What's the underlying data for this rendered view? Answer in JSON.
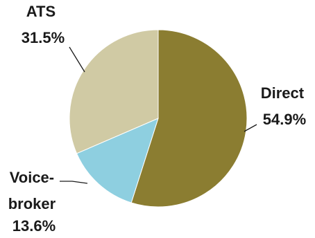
{
  "chart_data": {
    "type": "pie",
    "title": "",
    "slices": [
      {
        "name": "Direct",
        "label_lines": [
          "Direct",
          "54.9%"
        ],
        "value": 54.9,
        "color": "#8B7D31"
      },
      {
        "name": "Voice-broker",
        "label_lines": [
          "Voice-",
          "broker",
          "13.6%"
        ],
        "value": 13.6,
        "color": "#8ECFE0"
      },
      {
        "name": "ATS",
        "label_lines": [
          "ATS",
          "31.5%"
        ],
        "value": 31.5,
        "color": "#D0CAA4"
      }
    ],
    "start": "12 o'clock",
    "direction": "clockwise",
    "legend": "none"
  }
}
